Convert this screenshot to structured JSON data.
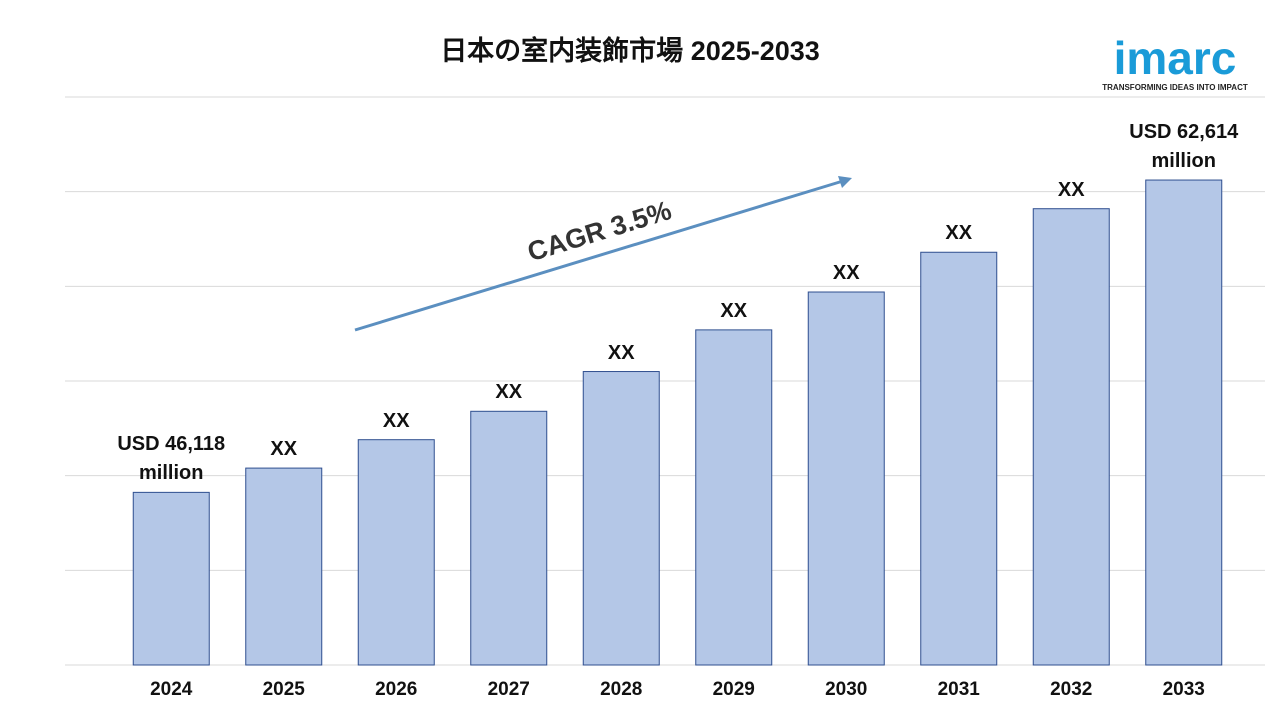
{
  "chart_data": {
    "type": "bar",
    "title": "日本の室内装飾市場 2025-2033",
    "categories": [
      "2024",
      "2025",
      "2026",
      "2027",
      "2028",
      "2029",
      "2030",
      "2031",
      "2032",
      "2033"
    ],
    "values": [
      46118,
      47400,
      48900,
      50400,
      52500,
      54700,
      56700,
      58800,
      61100,
      62614
    ],
    "value_labels": [
      "USD 46,118 million",
      "XX",
      "XX",
      "XX",
      "XX",
      "XX",
      "XX",
      "XX",
      "XX",
      "USD 62,614 million"
    ],
    "color": "#b4c7e7",
    "edge_color": "#2f4f8f",
    "ylim": [
      37000,
      67000
    ],
    "gridlines": [
      37000,
      42000,
      47000,
      52000,
      57000,
      62000,
      67000
    ],
    "grid": true,
    "annotation": "CAGR 3.5%",
    "annotation_color": "#5b8fc0"
  },
  "logo": {
    "name": "imarc",
    "tagline": "TRANSFORMING IDEAS INTO IMPACT"
  }
}
